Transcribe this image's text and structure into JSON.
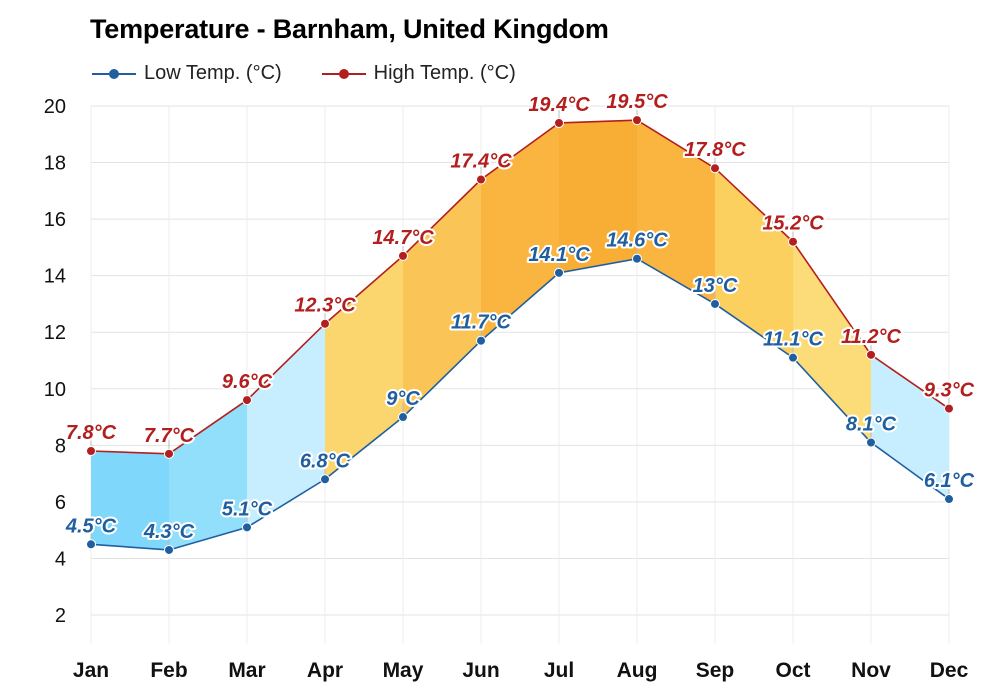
{
  "chart_data": {
    "type": "area",
    "title": "Temperature - Barnham, United Kingdom",
    "categories": [
      "Jan",
      "Feb",
      "Mar",
      "Apr",
      "May",
      "Jun",
      "Jul",
      "Aug",
      "Sep",
      "Oct",
      "Nov",
      "Dec"
    ],
    "series": [
      {
        "name": "Low Temp. (°C)",
        "color": "#1f5fa0",
        "values": [
          4.5,
          4.3,
          5.1,
          6.8,
          9.0,
          11.7,
          14.1,
          14.6,
          13.0,
          11.1,
          8.1,
          6.1
        ],
        "labels": [
          "4.5°C",
          "4.3°C",
          "5.1°C",
          "6.8°C",
          "9°C",
          "11.7°C",
          "14.1°C",
          "14.6°C",
          "13°C",
          "11.1°C",
          "8.1°C",
          "6.1°C"
        ]
      },
      {
        "name": "High Temp. (°C)",
        "color": "#b31e1e",
        "values": [
          7.8,
          7.7,
          9.6,
          12.3,
          14.7,
          17.4,
          19.4,
          19.5,
          17.8,
          15.2,
          11.2,
          9.3
        ],
        "labels": [
          "7.8°C",
          "7.7°C",
          "9.6°C",
          "12.3°C",
          "14.7°C",
          "17.4°C",
          "19.4°C",
          "19.5°C",
          "17.8°C",
          "15.2°C",
          "11.2°C",
          "9.3°C"
        ]
      }
    ],
    "ylim": [
      1,
      20
    ],
    "yticks": [
      "2",
      "4",
      "6",
      "8",
      "10",
      "12",
      "14",
      "16",
      "18",
      "20"
    ],
    "band_colors": [
      "#7fd8fb",
      "#92dffc",
      "#c6eefe",
      "#fbd66e",
      "#fac457",
      "#f9b53f",
      "#f8ae35",
      "#f9b53f",
      "#fbd05f",
      "#fbdc78",
      "#c6eefe",
      "#a2e3fd"
    ],
    "grid": true,
    "legend_position": "top-left"
  }
}
